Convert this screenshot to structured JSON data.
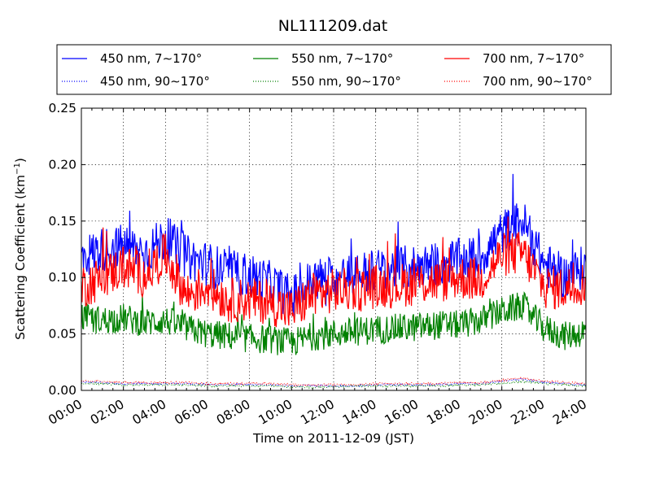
{
  "chart_data": {
    "type": "line",
    "title": "NL111209.dat",
    "xlabel": "Time on 2011-12-09 (JST)",
    "ylabel": "Scattering Coefficient (km",
    "ylabel_superscript": "−1",
    "ylabel_suffix": ")",
    "xlim": [
      "00:00",
      "24:00"
    ],
    "ylim": [
      0.0,
      0.25
    ],
    "x_ticks": [
      "00:00",
      "02:00",
      "04:00",
      "06:00",
      "08:00",
      "10:00",
      "12:00",
      "14:00",
      "16:00",
      "18:00",
      "20:00",
      "22:00",
      "24:00"
    ],
    "y_ticks": [
      "0.00",
      "0.05",
      "0.10",
      "0.15",
      "0.20",
      "0.25"
    ],
    "grid": true,
    "legend_position": "top (outside, above plot)",
    "x": [
      "00:00",
      "01:00",
      "02:00",
      "03:00",
      "04:00",
      "05:00",
      "06:00",
      "07:00",
      "08:00",
      "09:00",
      "10:00",
      "11:00",
      "12:00",
      "13:00",
      "14:00",
      "15:00",
      "16:00",
      "17:00",
      "18:00",
      "19:00",
      "20:00",
      "21:00",
      "22:00",
      "23:00",
      "24:00"
    ],
    "series": [
      {
        "name": "450 nm, 7∼170°",
        "color": "#0000ff",
        "style": "solid",
        "values": [
          0.118,
          0.125,
          0.128,
          0.122,
          0.135,
          0.118,
          0.112,
          0.105,
          0.102,
          0.095,
          0.082,
          0.098,
          0.1,
          0.103,
          0.106,
          0.108,
          0.11,
          0.112,
          0.115,
          0.118,
          0.14,
          0.15,
          0.112,
          0.1,
          0.11
        ]
      },
      {
        "name": "550 nm, 7∼170°",
        "color": "#008000",
        "style": "solid",
        "values": [
          0.065,
          0.062,
          0.064,
          0.06,
          0.062,
          0.055,
          0.05,
          0.048,
          0.046,
          0.045,
          0.042,
          0.048,
          0.05,
          0.052,
          0.054,
          0.055,
          0.056,
          0.058,
          0.058,
          0.062,
          0.07,
          0.075,
          0.055,
          0.048,
          0.052
        ]
      },
      {
        "name": "700 nm, 7∼170°",
        "color": "#ff0000",
        "style": "solid",
        "values": [
          0.092,
          0.1,
          0.11,
          0.102,
          0.12,
          0.085,
          0.092,
          0.08,
          0.08,
          0.078,
          0.07,
          0.085,
          0.088,
          0.09,
          0.092,
          0.093,
          0.095,
          0.097,
          0.1,
          0.098,
          0.12,
          0.122,
          0.092,
          0.09,
          0.096
        ]
      },
      {
        "name": "450 nm, 90∼170°",
        "color": "#0000ff",
        "style": "dotted",
        "values": [
          0.007,
          0.007,
          0.006,
          0.006,
          0.006,
          0.006,
          0.005,
          0.005,
          0.005,
          0.005,
          0.004,
          0.004,
          0.004,
          0.004,
          0.005,
          0.005,
          0.005,
          0.005,
          0.006,
          0.006,
          0.008,
          0.01,
          0.007,
          0.006,
          0.005
        ]
      },
      {
        "name": "550 nm, 90∼170°",
        "color": "#008000",
        "style": "dotted",
        "values": [
          0.006,
          0.006,
          0.005,
          0.005,
          0.005,
          0.005,
          0.004,
          0.004,
          0.004,
          0.004,
          0.003,
          0.003,
          0.003,
          0.004,
          0.004,
          0.004,
          0.004,
          0.004,
          0.005,
          0.005,
          0.006,
          0.008,
          0.006,
          0.005,
          0.004
        ]
      },
      {
        "name": "700 nm, 90∼170°",
        "color": "#ff0000",
        "style": "dotted",
        "values": [
          0.008,
          0.008,
          0.007,
          0.007,
          0.007,
          0.007,
          0.006,
          0.006,
          0.006,
          0.006,
          0.005,
          0.005,
          0.005,
          0.005,
          0.006,
          0.006,
          0.006,
          0.006,
          0.007,
          0.007,
          0.009,
          0.011,
          0.008,
          0.007,
          0.006
        ]
      }
    ]
  }
}
